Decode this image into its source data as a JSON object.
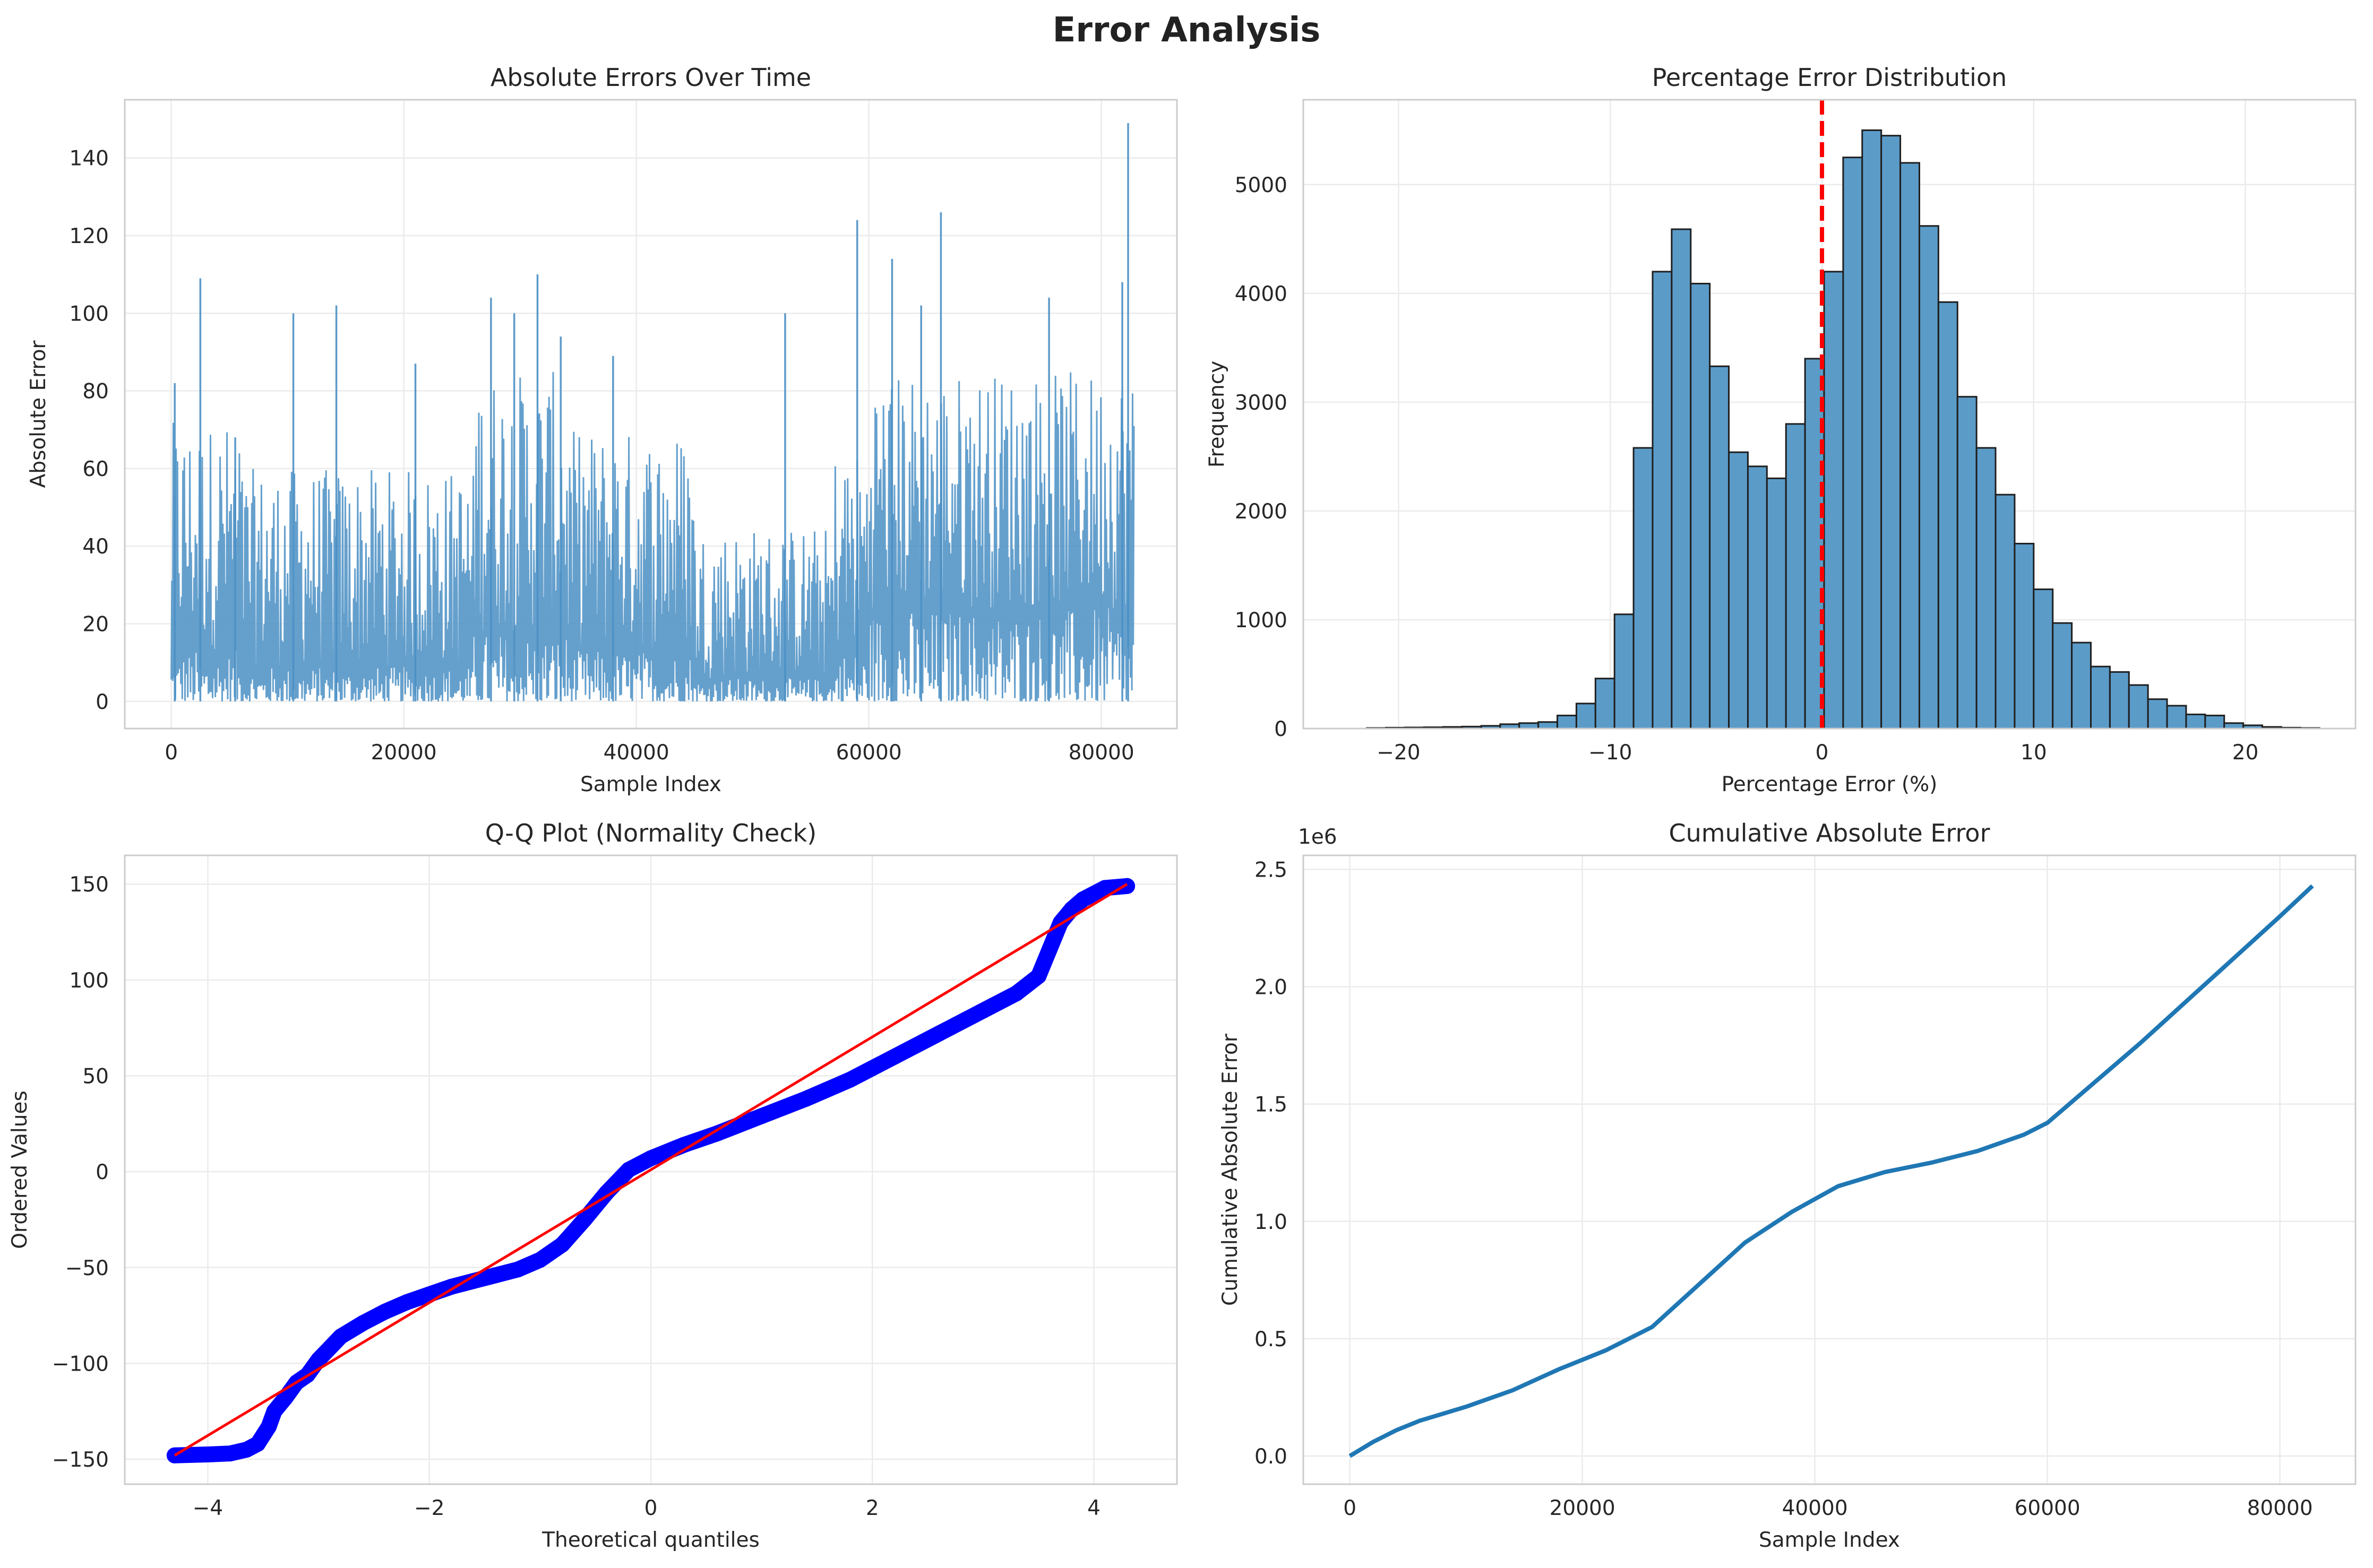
{
  "figure": {
    "title": "Error Analysis"
  },
  "chart_data": [
    {
      "type": "line",
      "title": "Absolute Errors Over Time",
      "xlabel": "Sample Index",
      "ylabel": "Absolute Error",
      "xlim": [
        -4000,
        86500
      ],
      "ylim": [
        -7,
        155
      ],
      "xticks": [
        0,
        20000,
        40000,
        60000,
        80000
      ],
      "yticks": [
        0,
        20,
        40,
        60,
        80,
        100,
        120,
        140
      ],
      "grid": true,
      "color": "#4a8fc4",
      "x_range": [
        0,
        82800
      ],
      "segments": [
        {
          "x0": 0,
          "x1": 6000,
          "mean": 22,
          "max": 72
        },
        {
          "x0": 6000,
          "x1": 26000,
          "mean": 15,
          "max": 60
        },
        {
          "x0": 26000,
          "x1": 34000,
          "mean": 30,
          "max": 85
        },
        {
          "x0": 34000,
          "x1": 45000,
          "mean": 22,
          "max": 70
        },
        {
          "x0": 45000,
          "x1": 57000,
          "mean": 10,
          "max": 45
        },
        {
          "x0": 57000,
          "x1": 60000,
          "mean": 22,
          "max": 65
        },
        {
          "x0": 60000,
          "x1": 82800,
          "mean": 40,
          "max": 85
        }
      ],
      "spikes": [
        {
          "x": 300,
          "y": 82
        },
        {
          "x": 2500,
          "y": 109
        },
        {
          "x": 5500,
          "y": 68
        },
        {
          "x": 10500,
          "y": 100
        },
        {
          "x": 14200,
          "y": 102
        },
        {
          "x": 21000,
          "y": 87
        },
        {
          "x": 27500,
          "y": 104
        },
        {
          "x": 29500,
          "y": 100
        },
        {
          "x": 31500,
          "y": 110
        },
        {
          "x": 33500,
          "y": 94
        },
        {
          "x": 38000,
          "y": 89
        },
        {
          "x": 52800,
          "y": 100
        },
        {
          "x": 59000,
          "y": 124
        },
        {
          "x": 62000,
          "y": 114
        },
        {
          "x": 64500,
          "y": 102
        },
        {
          "x": 66200,
          "y": 126
        },
        {
          "x": 75500,
          "y": 104
        },
        {
          "x": 81800,
          "y": 108
        },
        {
          "x": 82300,
          "y": 149
        }
      ]
    },
    {
      "type": "bar",
      "title": "Percentage Error Distribution",
      "xlabel": "Percentage Error (%)",
      "ylabel": "Frequency",
      "xlim": [
        -24.5,
        25.2
      ],
      "ylim": [
        0,
        5780
      ],
      "xticks": [
        -20,
        -10,
        0,
        10,
        20
      ],
      "yticks": [
        0,
        1000,
        2000,
        3000,
        4000,
        5000
      ],
      "grid": true,
      "color": "#5b9bc8",
      "edgecolor": "#1f1f1f",
      "bin_start": -21.5,
      "bin_width": 0.9,
      "values": [
        5,
        8,
        10,
        12,
        15,
        18,
        25,
        40,
        50,
        60,
        120,
        230,
        460,
        1050,
        2580,
        4200,
        4590,
        4090,
        3330,
        2540,
        2410,
        2300,
        2800,
        3400,
        4200,
        5250,
        5500,
        5450,
        5200,
        4620,
        3920,
        3050,
        2580,
        2150,
        1700,
        1280,
        970,
        790,
        570,
        520,
        400,
        270,
        210,
        130,
        120,
        50,
        30,
        15,
        8,
        5
      ],
      "reference_line": {
        "x": 0,
        "color": "#ff0000",
        "style": "dashed"
      }
    },
    {
      "type": "scatter",
      "title": "Q-Q Plot (Normality Check)",
      "xlabel": "Theoretical quantiles",
      "ylabel": "Ordered Values",
      "xlim": [
        -4.75,
        4.75
      ],
      "ylim": [
        -163,
        165
      ],
      "xticks": [
        -4,
        -2,
        0,
        2,
        4
      ],
      "yticks": [
        -150,
        -100,
        -50,
        0,
        50,
        100,
        150
      ],
      "grid": true,
      "marker_color": "#0000ff",
      "line_color": "#ff0000",
      "fit_line": {
        "x": [
          -4.3,
          4.3
        ],
        "y": [
          -148,
          150
        ]
      },
      "points": [
        {
          "x": -4.3,
          "y": -148
        },
        {
          "x": -4.0,
          "y": -147.5
        },
        {
          "x": -3.8,
          "y": -147
        },
        {
          "x": -3.65,
          "y": -145
        },
        {
          "x": -3.55,
          "y": -142
        },
        {
          "x": -3.45,
          "y": -133
        },
        {
          "x": -3.4,
          "y": -125
        },
        {
          "x": -3.3,
          "y": -118
        },
        {
          "x": -3.2,
          "y": -110
        },
        {
          "x": -3.1,
          "y": -106
        },
        {
          "x": -3.0,
          "y": -98
        },
        {
          "x": -2.9,
          "y": -92
        },
        {
          "x": -2.8,
          "y": -86
        },
        {
          "x": -2.6,
          "y": -79
        },
        {
          "x": -2.4,
          "y": -73
        },
        {
          "x": -2.2,
          "y": -68
        },
        {
          "x": -2.0,
          "y": -64
        },
        {
          "x": -1.8,
          "y": -60
        },
        {
          "x": -1.6,
          "y": -57
        },
        {
          "x": -1.4,
          "y": -54
        },
        {
          "x": -1.2,
          "y": -51
        },
        {
          "x": -1.0,
          "y": -46
        },
        {
          "x": -0.8,
          "y": -38
        },
        {
          "x": -0.6,
          "y": -25
        },
        {
          "x": -0.4,
          "y": -11
        },
        {
          "x": -0.2,
          "y": 1
        },
        {
          "x": 0.0,
          "y": 7
        },
        {
          "x": 0.3,
          "y": 14
        },
        {
          "x": 0.6,
          "y": 20
        },
        {
          "x": 1.0,
          "y": 29
        },
        {
          "x": 1.4,
          "y": 38
        },
        {
          "x": 1.8,
          "y": 48
        },
        {
          "x": 2.2,
          "y": 60
        },
        {
          "x": 2.6,
          "y": 72
        },
        {
          "x": 3.0,
          "y": 84
        },
        {
          "x": 3.3,
          "y": 93
        },
        {
          "x": 3.5,
          "y": 102
        },
        {
          "x": 3.6,
          "y": 116
        },
        {
          "x": 3.7,
          "y": 130
        },
        {
          "x": 3.8,
          "y": 137
        },
        {
          "x": 3.9,
          "y": 142
        },
        {
          "x": 4.1,
          "y": 148
        },
        {
          "x": 4.3,
          "y": 149
        }
      ]
    },
    {
      "type": "line",
      "title": "Cumulative Absolute Error",
      "xlabel": "Sample Index",
      "ylabel": "Cumulative Absolute Error",
      "offset_text": "1e6",
      "xlim": [
        -4000,
        86500
      ],
      "ylim": [
        -0.12,
        2.56
      ],
      "xticks": [
        0,
        20000,
        40000,
        60000,
        80000
      ],
      "yticks": [
        0.0,
        0.5,
        1.0,
        1.5,
        2.0,
        2.5
      ],
      "grid": true,
      "color": "#1f77b4",
      "x": [
        0,
        2000,
        4000,
        6000,
        10000,
        14000,
        18000,
        22000,
        26000,
        30000,
        34000,
        38000,
        42000,
        46000,
        50000,
        54000,
        58000,
        60000,
        64000,
        68000,
        72000,
        76000,
        80000,
        82800
      ],
      "y": [
        0.0,
        0.06,
        0.11,
        0.15,
        0.21,
        0.28,
        0.37,
        0.45,
        0.55,
        0.73,
        0.91,
        1.04,
        1.15,
        1.21,
        1.25,
        1.3,
        1.37,
        1.42,
        1.59,
        1.76,
        1.94,
        2.12,
        2.3,
        2.43
      ]
    }
  ]
}
